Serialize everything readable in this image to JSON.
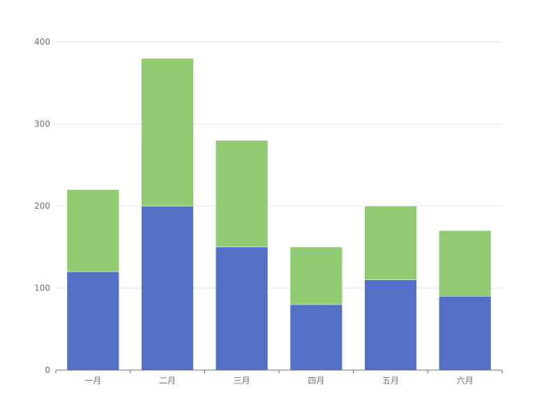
{
  "chart_data": {
    "type": "bar",
    "stacked": true,
    "categories": [
      "一月",
      "二月",
      "三月",
      "四月",
      "五月",
      "六月"
    ],
    "series": [
      {
        "color": "#5470c6",
        "values": [
          120,
          200,
          150,
          80,
          110,
          90
        ]
      },
      {
        "color": "#91cc75",
        "values": [
          100,
          180,
          130,
          70,
          90,
          80
        ]
      }
    ],
    "yticks": [
      "0",
      "100",
      "200",
      "300",
      "400"
    ],
    "ylim": [
      0,
      400
    ],
    "grid": "horizontal",
    "legend": "none"
  }
}
